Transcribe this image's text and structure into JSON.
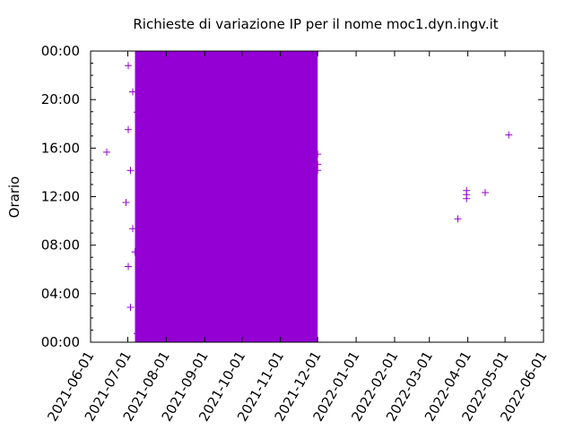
{
  "chart_data": {
    "type": "scatter",
    "title": "Richieste di variazione IP per il nome moc1.dyn.ingv.it",
    "xlabel": "",
    "ylabel": "Orario",
    "marker": "+",
    "x_type": "date",
    "xlim": [
      "2021-06-01",
      "2022-06-01"
    ],
    "ylim": [
      "00:00",
      "24:00"
    ],
    "x_ticks": [
      "2021-06-01",
      "2021-07-01",
      "2021-08-01",
      "2021-09-01",
      "2021-10-01",
      "2021-11-01",
      "2021-12-01",
      "2022-01-01",
      "2022-02-01",
      "2022-03-01",
      "2022-04-01",
      "2022-05-01",
      "2022-06-01"
    ],
    "y_ticks": [
      "00:00",
      "04:00",
      "08:00",
      "12:00",
      "16:00",
      "20:00",
      "00:00"
    ],
    "grid": false,
    "legend": "none",
    "dense_region": {
      "start": "2021-07-01",
      "end": "2021-12-01",
      "time_range": [
        "00:00",
        "24:00"
      ]
    },
    "series": [
      {
        "color": "#9400d3",
        "points": [
          {
            "x": "2021-06-14",
            "y": "15:40"
          },
          {
            "x": "2021-12-01",
            "y": "15:30"
          },
          {
            "x": "2021-12-01",
            "y": "14:40"
          },
          {
            "x": "2021-12-01",
            "y": "14:10"
          },
          {
            "x": "2022-03-24",
            "y": "10:10"
          },
          {
            "x": "2022-03-31",
            "y": "11:50"
          },
          {
            "x": "2022-03-31",
            "y": "12:10"
          },
          {
            "x": "2022-03-31",
            "y": "12:30"
          },
          {
            "x": "2022-04-15",
            "y": "12:20"
          },
          {
            "x": "2022-05-04",
            "y": "17:05"
          }
        ]
      }
    ],
    "colors": {
      "series": "#9400d3",
      "axis": "#000000",
      "background": "#ffffff"
    }
  }
}
